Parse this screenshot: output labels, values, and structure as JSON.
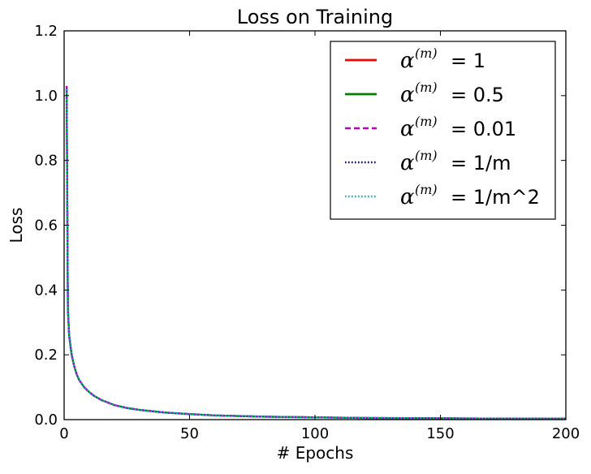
{
  "chart_data": {
    "type": "line",
    "title": "Loss on Training",
    "xlabel": "# Epochs",
    "ylabel": "Loss",
    "xlim": [
      0,
      200
    ],
    "ylim": [
      0.0,
      1.2
    ],
    "xticks": [
      0,
      50,
      100,
      150,
      200
    ],
    "yticks": [
      0.0,
      0.2,
      0.4,
      0.6,
      0.8,
      1.0,
      1.2
    ],
    "xtick_labels": [
      "0",
      "50",
      "100",
      "150",
      "200"
    ],
    "ytick_labels": [
      "0.0",
      "0.2",
      "0.4",
      "0.6",
      "0.8",
      "1.0",
      "1.2"
    ],
    "grid": false,
    "legend_position": "top-right",
    "x": [
      1,
      1.5,
      2,
      3,
      4,
      5,
      6,
      8,
      10,
      12,
      15,
      20,
      25,
      30,
      40,
      50,
      60,
      70,
      80,
      100,
      120,
      150,
      175,
      200
    ],
    "series": [
      {
        "name": "α^(m) = 1",
        "legend_value": "1",
        "color": "#ff0000",
        "style": "solid",
        "values": [
          1.02,
          0.34,
          0.26,
          0.2,
          0.165,
          0.14,
          0.122,
          0.1,
          0.085,
          0.073,
          0.06,
          0.045,
          0.036,
          0.03,
          0.022,
          0.017,
          0.013,
          0.011,
          0.009,
          0.007,
          0.005,
          0.004,
          0.003,
          0.003
        ]
      },
      {
        "name": "α^(m) = 0.5",
        "legend_value": "0.5",
        "color": "#008000",
        "style": "solid",
        "values": [
          1.02,
          0.34,
          0.26,
          0.2,
          0.165,
          0.14,
          0.122,
          0.1,
          0.085,
          0.073,
          0.06,
          0.045,
          0.036,
          0.03,
          0.022,
          0.017,
          0.013,
          0.011,
          0.009,
          0.007,
          0.005,
          0.004,
          0.003,
          0.003
        ]
      },
      {
        "name": "α^(m) = 0.01",
        "legend_value": "0.01",
        "color": "#bf00bf",
        "style": "dashed",
        "values": [
          1.03,
          0.34,
          0.26,
          0.2,
          0.165,
          0.14,
          0.122,
          0.1,
          0.085,
          0.073,
          0.06,
          0.045,
          0.036,
          0.03,
          0.022,
          0.017,
          0.013,
          0.011,
          0.009,
          0.007,
          0.005,
          0.004,
          0.003,
          0.003
        ]
      },
      {
        "name": "α^(m) = 1/m",
        "legend_value": "1/m",
        "color": "#0000bf",
        "style": "dotted",
        "values": [
          1.02,
          0.34,
          0.26,
          0.2,
          0.165,
          0.14,
          0.122,
          0.1,
          0.085,
          0.073,
          0.06,
          0.045,
          0.036,
          0.03,
          0.022,
          0.017,
          0.013,
          0.011,
          0.009,
          0.007,
          0.005,
          0.004,
          0.003,
          0.003
        ]
      },
      {
        "name": "α^(m) = 1/m^2",
        "legend_value": "1/m^2",
        "color": "#00bfbf",
        "style": "dotted",
        "values": [
          1.02,
          0.34,
          0.26,
          0.2,
          0.165,
          0.14,
          0.122,
          0.1,
          0.085,
          0.073,
          0.06,
          0.045,
          0.036,
          0.03,
          0.022,
          0.017,
          0.013,
          0.011,
          0.009,
          0.007,
          0.005,
          0.004,
          0.003,
          0.003
        ]
      }
    ]
  }
}
